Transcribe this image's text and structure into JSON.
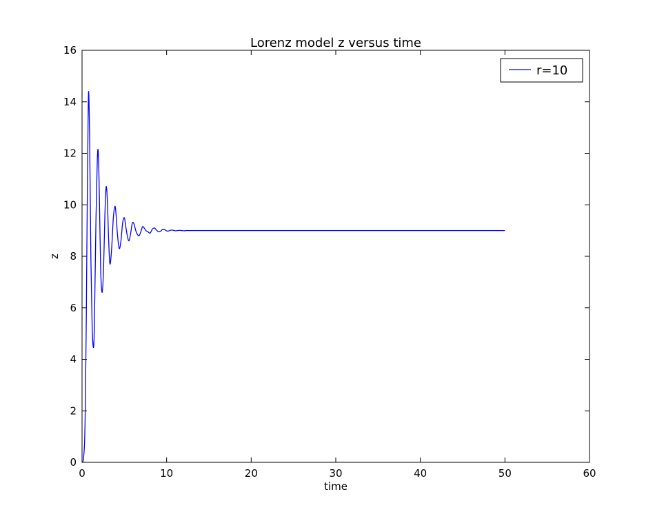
{
  "chart_data": {
    "type": "line",
    "title": "Lorenz model z versus time",
    "xlabel": "time",
    "ylabel": "z",
    "xlim": [
      0,
      60
    ],
    "ylim": [
      0,
      16
    ],
    "xticks": [
      0,
      10,
      20,
      30,
      40,
      50,
      60
    ],
    "yticks": [
      0,
      2,
      4,
      6,
      8,
      10,
      12,
      14,
      16
    ],
    "grid": false,
    "legend": {
      "position": "top-right"
    },
    "series": [
      {
        "name": "r=10",
        "color": "#0000ff",
        "x": [
          0,
          0.15,
          0.3,
          0.4,
          0.5,
          0.6,
          0.7,
          0.78,
          0.9,
          1.05,
          1.2,
          1.38,
          1.5,
          1.65,
          1.8,
          1.92,
          2.05,
          2.2,
          2.38,
          2.55,
          2.7,
          2.85,
          3.0,
          3.15,
          3.3,
          3.5,
          3.7,
          3.9,
          4.05,
          4.2,
          4.4,
          4.6,
          4.8,
          5.0,
          5.15,
          5.35,
          5.55,
          5.75,
          5.95,
          6.15,
          6.35,
          6.55,
          6.75,
          6.95,
          7.15,
          7.35,
          7.55,
          7.8,
          8.05,
          8.3,
          8.55,
          8.8,
          9.05,
          9.3,
          9.55,
          9.8,
          10.05,
          10.3,
          10.55,
          10.8,
          11.05,
          11.3,
          11.55,
          11.8,
          12.05,
          12.3,
          12.55,
          12.8,
          13.05,
          13.3,
          13.55,
          13.8,
          14.05,
          14.3,
          14.6,
          15,
          20,
          30,
          40,
          50
        ],
        "y": [
          0,
          0.1,
          0.8,
          2.5,
          5.5,
          9.5,
          12.8,
          14.4,
          12.5,
          7.8,
          5.2,
          4.5,
          6.2,
          9.5,
          11.7,
          12.05,
          10.3,
          7.5,
          6.6,
          7.6,
          9.6,
          10.7,
          10.1,
          8.6,
          7.7,
          8.3,
          9.5,
          9.95,
          9.5,
          8.8,
          8.3,
          8.6,
          9.3,
          9.5,
          9.2,
          8.8,
          8.6,
          8.9,
          9.3,
          9.25,
          9.0,
          8.85,
          8.8,
          8.95,
          9.15,
          9.1,
          9.0,
          8.95,
          8.9,
          9.05,
          9.1,
          9.02,
          8.95,
          8.98,
          9.05,
          9.03,
          8.98,
          8.99,
          9.02,
          9.01,
          8.99,
          9.0,
          9.01,
          9.0,
          8.99,
          9.0,
          9.0,
          9.0,
          9.0,
          9.0,
          9.0,
          9.0,
          9.0,
          9.0,
          9.0,
          9.0,
          9.0,
          9.0,
          9.0,
          9.0
        ]
      }
    ]
  }
}
